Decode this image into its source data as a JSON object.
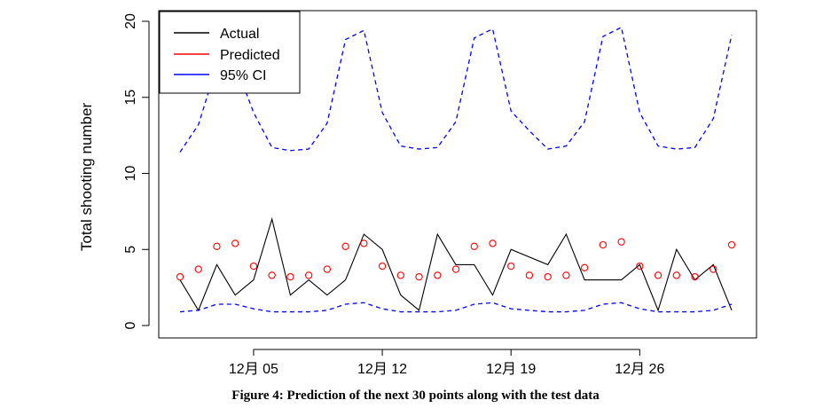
{
  "caption": "Figure 4: Prediction of the next 30 points along with the test data",
  "chart_data": {
    "type": "line",
    "ylabel": "Total shooting number",
    "xlabel": "",
    "ylim": [
      0,
      20
    ],
    "yticks": [
      0,
      5,
      10,
      15,
      20
    ],
    "xticks": [
      {
        "label": "12月 05",
        "x": 5
      },
      {
        "label": "12月 12",
        "x": 12
      },
      {
        "label": "12月 19",
        "x": 19
      },
      {
        "label": "12月 26",
        "x": 26
      }
    ],
    "x": [
      1,
      2,
      3,
      4,
      5,
      6,
      7,
      8,
      9,
      10,
      11,
      12,
      13,
      14,
      15,
      16,
      17,
      18,
      19,
      20,
      21,
      22,
      23,
      24,
      25,
      26,
      27,
      28,
      29,
      30,
      31
    ],
    "series": [
      {
        "name": "Actual",
        "style": "solid-line",
        "color": "#000000",
        "values": [
          3,
          1,
          4,
          2,
          3,
          7,
          2,
          3,
          2,
          3,
          6,
          5,
          2,
          1,
          6,
          4,
          4,
          2,
          5,
          null,
          4,
          6,
          3,
          3,
          3,
          4,
          1,
          5,
          3,
          4,
          1
        ]
      },
      {
        "name": "Predicted",
        "style": "circle-points",
        "color": "#ff0000",
        "values": [
          3.2,
          3.7,
          5.2,
          5.4,
          3.9,
          3.3,
          3.2,
          3.3,
          3.7,
          5.2,
          5.4,
          3.9,
          3.3,
          3.2,
          3.3,
          3.7,
          5.2,
          5.4,
          3.9,
          3.3,
          3.2,
          3.3,
          3.8,
          5.3,
          5.5,
          3.9,
          3.3,
          3.3,
          3.2,
          3.7,
          5.3
        ]
      },
      {
        "name": "95% CI",
        "style": "dashed-line",
        "color": "#0000ff",
        "upper": [
          11.4,
          13.2,
          17.1,
          17.2,
          14.0,
          11.7,
          11.5,
          11.6,
          13.3,
          18.8,
          19.4,
          14.0,
          11.8,
          11.6,
          11.7,
          13.4,
          18.9,
          19.5,
          14.1,
          12.8,
          11.6,
          11.8,
          13.4,
          19.0,
          19.6,
          14.0,
          11.8,
          11.6,
          11.7,
          13.6,
          19.1
        ],
        "lower": [
          0.9,
          1.0,
          1.4,
          1.4,
          1.1,
          0.9,
          0.9,
          0.9,
          1.0,
          1.4,
          1.5,
          1.1,
          0.9,
          0.9,
          0.9,
          1.0,
          1.4,
          1.5,
          1.1,
          1.0,
          0.9,
          0.9,
          1.0,
          1.4,
          1.5,
          1.1,
          0.9,
          0.9,
          0.9,
          1.0,
          1.4
        ]
      }
    ],
    "legend": {
      "placement": "top-left",
      "entries": [
        "Actual",
        "Predicted",
        "95% CI"
      ]
    },
    "grid": false
  }
}
